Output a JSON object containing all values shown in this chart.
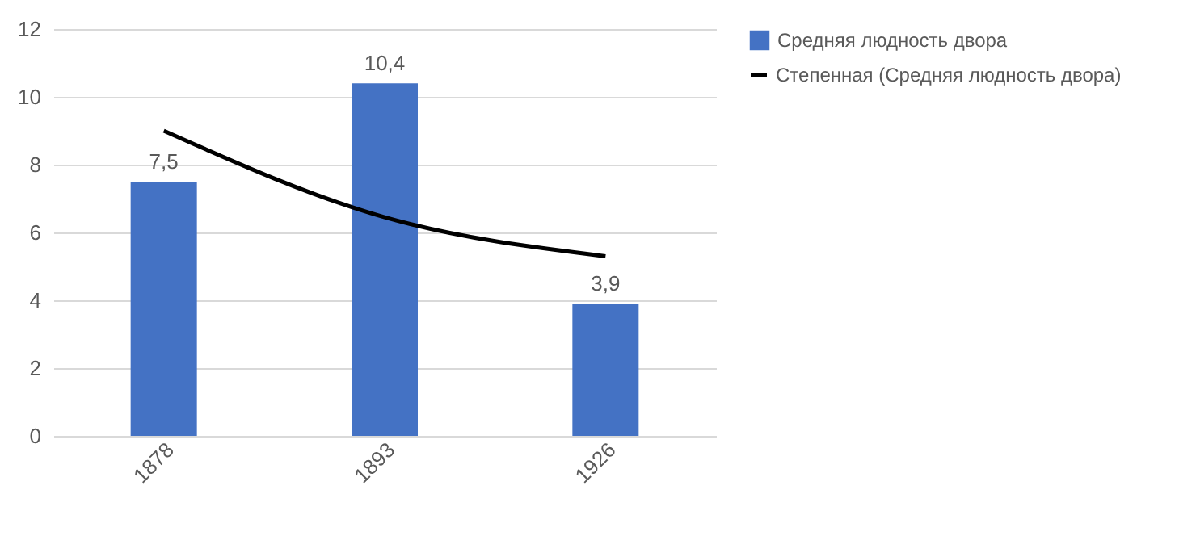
{
  "chart_data": {
    "type": "bar",
    "categories": [
      "1878",
      "1893",
      "1926"
    ],
    "series": [
      {
        "name": "Средняя людность двора",
        "color": "#4472c4",
        "values": [
          7.5,
          10.4,
          3.9
        ],
        "value_labels": [
          "7,5",
          "10,4",
          "3,9"
        ]
      },
      {
        "name": "Степенная (Средняя людность двора)",
        "type": "line",
        "color": "#000000",
        "values": [
          9.0,
          6.45,
          5.3
        ],
        "line_style": "solid",
        "marker": "none"
      }
    ],
    "ylim": [
      0,
      12
    ],
    "yticks": [
      0,
      2,
      4,
      6,
      8,
      10,
      12
    ],
    "grid": "y",
    "legend": "right"
  }
}
